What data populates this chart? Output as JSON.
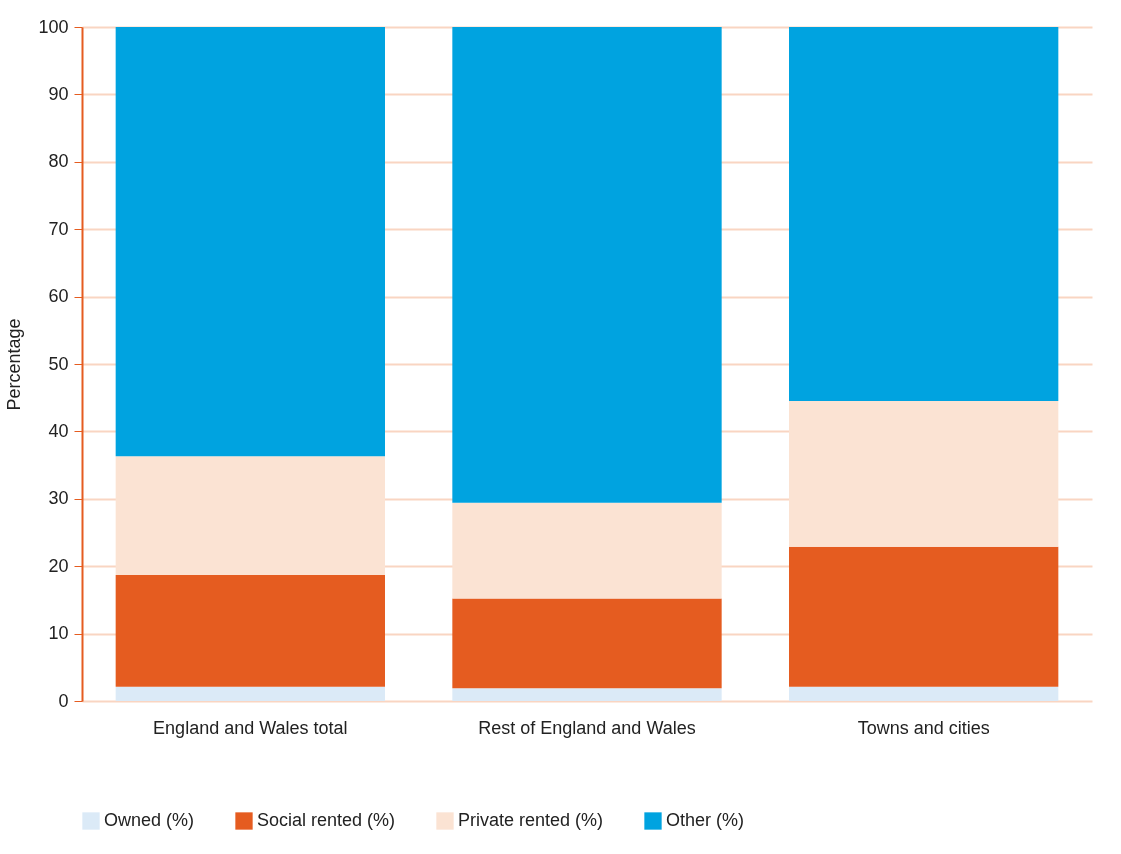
{
  "chart_data": {
    "type": "bar",
    "stacked": true,
    "ylabel": "Percentage",
    "categories": [
      "England and Wales total",
      "Rest of England and Wales",
      "Towns and cities"
    ],
    "series": [
      {
        "name": "Owned (%)",
        "color": "#dbeaf7",
        "values": [
          2.1,
          1.9,
          2.1
        ]
      },
      {
        "name": "Social rented (%)",
        "color": "#e55c20",
        "values": [
          16.6,
          13.3,
          20.8
        ]
      },
      {
        "name": "Private rented (%)",
        "color": "#fbe3d3",
        "values": [
          17.6,
          14.2,
          21.6
        ]
      },
      {
        "name": "Other (%)",
        "color": "#00a3e0",
        "values": [
          63.7,
          70.6,
          55.5
        ]
      }
    ],
    "ylim": [
      0,
      100
    ],
    "yticks": [
      0,
      10,
      20,
      30,
      40,
      50,
      60,
      70,
      80,
      90,
      100
    ],
    "grid": "y",
    "legend": "bottom"
  }
}
